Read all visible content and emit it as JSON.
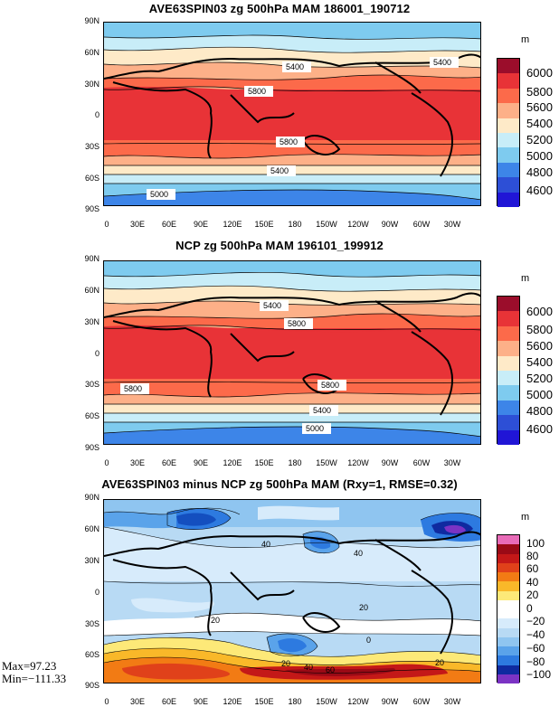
{
  "panels": [
    {
      "title": "AVE63SPIN03 zg 500hPa MAM 186001_190712",
      "unit": "m",
      "colorbar": {
        "labels": [
          "6000",
          "5800",
          "5600",
          "5400",
          "5200",
          "5000",
          "4800",
          "4600"
        ],
        "colors": [
          "#9b0d2b",
          "#e83337",
          "#fc6a4a",
          "#fdb088",
          "#feeac8",
          "#c8edf8",
          "#7ecbef",
          "#3d85e8",
          "#2d4fd6",
          "#2015d6"
        ]
      },
      "contour_labels": [
        "5400",
        "5400",
        "5800",
        "5800",
        "5400",
        "5000"
      ]
    },
    {
      "title": "NCP zg 500hPa MAM 196101_199912",
      "unit": "m",
      "colorbar": {
        "labels": [
          "6000",
          "5800",
          "5600",
          "5400",
          "5200",
          "5000",
          "4800",
          "4600"
        ],
        "colors": [
          "#9b0d2b",
          "#e83337",
          "#fc6a4a",
          "#fdb088",
          "#feeac8",
          "#c8edf8",
          "#7ecbef",
          "#3d85e8",
          "#2d4fd6",
          "#2015d6"
        ]
      },
      "contour_labels": [
        "5400",
        "5800",
        "5800",
        "5800",
        "5400",
        "5000"
      ]
    },
    {
      "title": "AVE63SPIN03 minus NCP zg 500hPa MAM (Rxy=1, RMSE=0.32)",
      "unit": "m",
      "colorbar": {
        "labels": [
          "100",
          "80",
          "60",
          "40",
          "20",
          "0",
          "−20",
          "−40",
          "−60",
          "−80",
          "−100"
        ],
        "colors": [
          "#e86bb8",
          "#9a0a16",
          "#c41818",
          "#e0411a",
          "#f27b14",
          "#f9b829",
          "#fde978",
          "#ffffff",
          "#d7ebfb",
          "#b8daf4",
          "#8fc5f0",
          "#5aa3ea",
          "#2d7ae0",
          "#144fbf",
          "#0f2aa0",
          "#7b33c4"
        ]
      },
      "contour_labels": [
        "40",
        "40",
        "20",
        "20",
        "0",
        "20",
        "40",
        "60",
        "20"
      ]
    }
  ],
  "lat_labels": [
    "90N",
    "60N",
    "30N",
    "0",
    "30S",
    "60S",
    "90S"
  ],
  "lon_labels": [
    "0",
    "30E",
    "60E",
    "90E",
    "120E",
    "150E",
    "180",
    "150W",
    "120W",
    "90W",
    "60W",
    "30W"
  ],
  "stats": {
    "max": "Max=97.23",
    "min": "Min=−111.33"
  }
}
